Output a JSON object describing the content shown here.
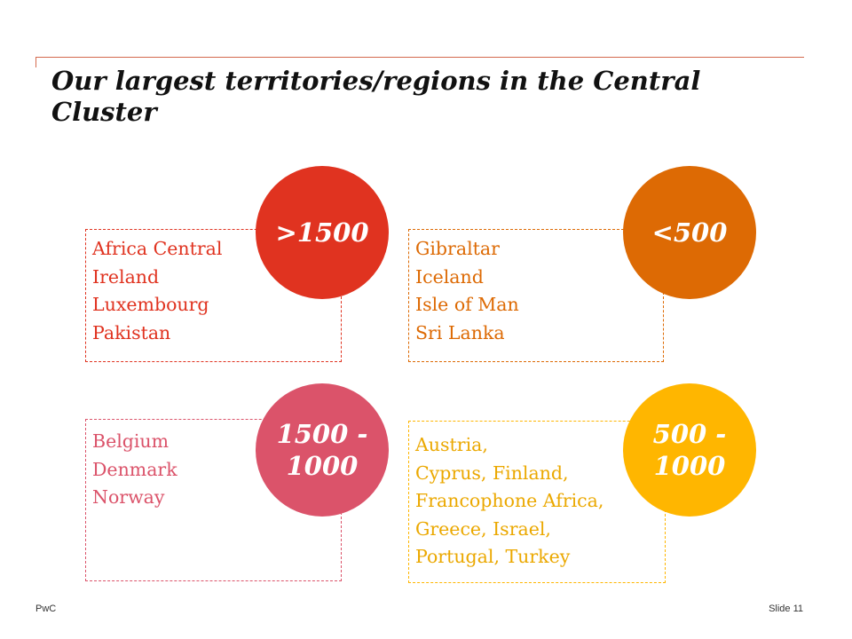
{
  "slide": {
    "title": "Our largest territories/regions in the Central Cluster",
    "footer_left": "PwC",
    "footer_right": "Slide 11"
  },
  "groups": [
    {
      "badge": ">1500",
      "color": "#e03320",
      "text_color": "#e03320",
      "items": [
        "Africa Central",
        "Ireland",
        "Luxembourg",
        "Pakistan"
      ]
    },
    {
      "badge": "<500",
      "color": "#dd6a04",
      "text_color": "#dd6a04",
      "items": [
        "Gibraltar",
        "Iceland",
        "Isle of Man",
        "Sri Lanka"
      ]
    },
    {
      "badge": "1500 -\n1000",
      "color": "#db536a",
      "text_color": "#db536a",
      "items": [
        "Belgium",
        "Denmark",
        "Norway"
      ]
    },
    {
      "badge": "500 -\n1000",
      "color": "#ffb600",
      "text_color": "#eba800",
      "items": [
        "Austria,",
        "Cyprus, Finland,",
        "Francophone Africa,",
        "Greece, Israel,",
        "Portugal, Turkey"
      ]
    }
  ]
}
